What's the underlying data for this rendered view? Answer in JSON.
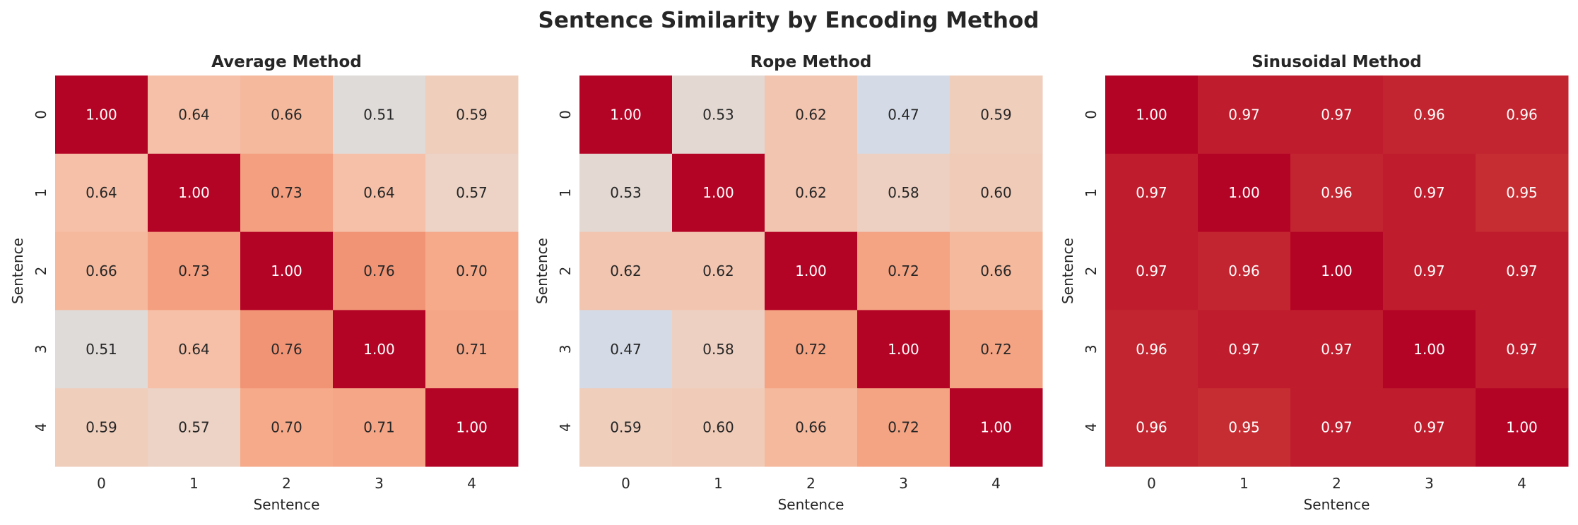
{
  "chart_data": {
    "title": "Sentence Similarity by Encoding Method",
    "colormap": "coolwarm",
    "vmin": 0,
    "vmax": 1,
    "colorbar": false,
    "panels": [
      {
        "type": "heatmap",
        "title": "Average Method",
        "xlabel": "Sentence",
        "ylabel": "Sentence",
        "xticks": [
          "0",
          "1",
          "2",
          "3",
          "4"
        ],
        "yticks": [
          "0",
          "1",
          "2",
          "3",
          "4"
        ],
        "values": [
          [
            1.0,
            0.64,
            0.66,
            0.51,
            0.59
          ],
          [
            0.64,
            1.0,
            0.73,
            0.64,
            0.57
          ],
          [
            0.66,
            0.73,
            1.0,
            0.76,
            0.7
          ],
          [
            0.51,
            0.64,
            0.76,
            1.0,
            0.71
          ],
          [
            0.59,
            0.57,
            0.7,
            0.71,
            1.0
          ]
        ]
      },
      {
        "type": "heatmap",
        "title": "Rope Method",
        "xlabel": "Sentence",
        "ylabel": "Sentence",
        "xticks": [
          "0",
          "1",
          "2",
          "3",
          "4"
        ],
        "yticks": [
          "0",
          "1",
          "2",
          "3",
          "4"
        ],
        "values": [
          [
            1.0,
            0.53,
            0.62,
            0.47,
            0.59
          ],
          [
            0.53,
            1.0,
            0.62,
            0.58,
            0.6
          ],
          [
            0.62,
            0.62,
            1.0,
            0.72,
            0.66
          ],
          [
            0.47,
            0.58,
            0.72,
            1.0,
            0.72
          ],
          [
            0.59,
            0.6,
            0.66,
            0.72,
            1.0
          ]
        ]
      },
      {
        "type": "heatmap",
        "title": "Sinusoidal Method",
        "xlabel": "Sentence",
        "ylabel": "Sentence",
        "xticks": [
          "0",
          "1",
          "2",
          "3",
          "4"
        ],
        "yticks": [
          "0",
          "1",
          "2",
          "3",
          "4"
        ],
        "values": [
          [
            1.0,
            0.97,
            0.97,
            0.96,
            0.96
          ],
          [
            0.97,
            1.0,
            0.96,
            0.97,
            0.95
          ],
          [
            0.97,
            0.96,
            1.0,
            0.97,
            0.97
          ],
          [
            0.96,
            0.97,
            0.97,
            1.0,
            0.97
          ],
          [
            0.96,
            0.95,
            0.97,
            0.97,
            1.0
          ]
        ]
      }
    ]
  }
}
